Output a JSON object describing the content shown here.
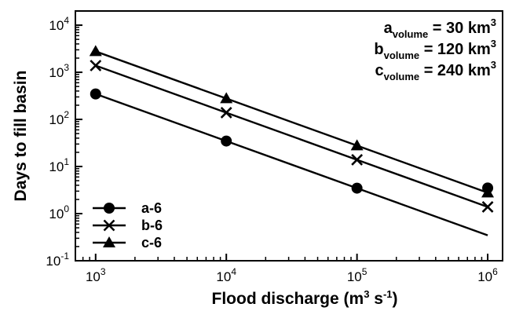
{
  "chart_data": {
    "type": "line",
    "title": "",
    "xlabel": "Flood discharge (m",
    "xlabel_sup1": "3",
    "xlabel_mid": " s",
    "xlabel_sup2": "-1",
    "xlabel_end": ")",
    "ylabel": "Days to fill basin",
    "xscale": "log",
    "yscale": "log",
    "xlim": [
      700,
      1300000
    ],
    "ylim": [
      0.1,
      20000
    ],
    "x_ticks": [
      {
        "value": 1000,
        "base": "10",
        "exp": "3"
      },
      {
        "value": 10000,
        "base": "10",
        "exp": "4"
      },
      {
        "value": 100000,
        "base": "10",
        "exp": "5"
      },
      {
        "value": 1000000,
        "base": "10",
        "exp": "6"
      }
    ],
    "y_ticks": [
      {
        "value": 0.1,
        "base": "10",
        "exp": "-1"
      },
      {
        "value": 1,
        "base": "10",
        "exp": "0"
      },
      {
        "value": 10,
        "base": "10",
        "exp": "1"
      },
      {
        "value": 100,
        "base": "10",
        "exp": "2"
      },
      {
        "value": 1000,
        "base": "10",
        "exp": "3"
      },
      {
        "value": 10000,
        "base": "10",
        "exp": "4"
      }
    ],
    "grid": false,
    "legend_position": "bottom-left",
    "series": [
      {
        "name": "a-6",
        "marker": "circle",
        "x": [
          1000,
          10000,
          100000,
          1000000
        ],
        "y": [
          347,
          34.7,
          3.47,
          0.347
        ],
        "marker_y_last": 3.5
      },
      {
        "name": "b-6",
        "marker": "x",
        "x": [
          1000,
          10000,
          100000,
          1000000
        ],
        "y": [
          1389,
          138.9,
          13.89,
          1.389
        ]
      },
      {
        "name": "c-6",
        "marker": "triangle",
        "x": [
          1000,
          10000,
          100000,
          1000000
        ],
        "y": [
          2778,
          277.8,
          27.78,
          2.778
        ]
      }
    ],
    "annotations": [
      {
        "letter": "a",
        "sub": "volume",
        "text": " = 30 km",
        "sup": "3"
      },
      {
        "letter": "b",
        "sub": "volume",
        "text": " = 120 km",
        "sup": "3"
      },
      {
        "letter": "c",
        "sub": "volume",
        "text": " = 240 km",
        "sup": "3"
      }
    ]
  }
}
